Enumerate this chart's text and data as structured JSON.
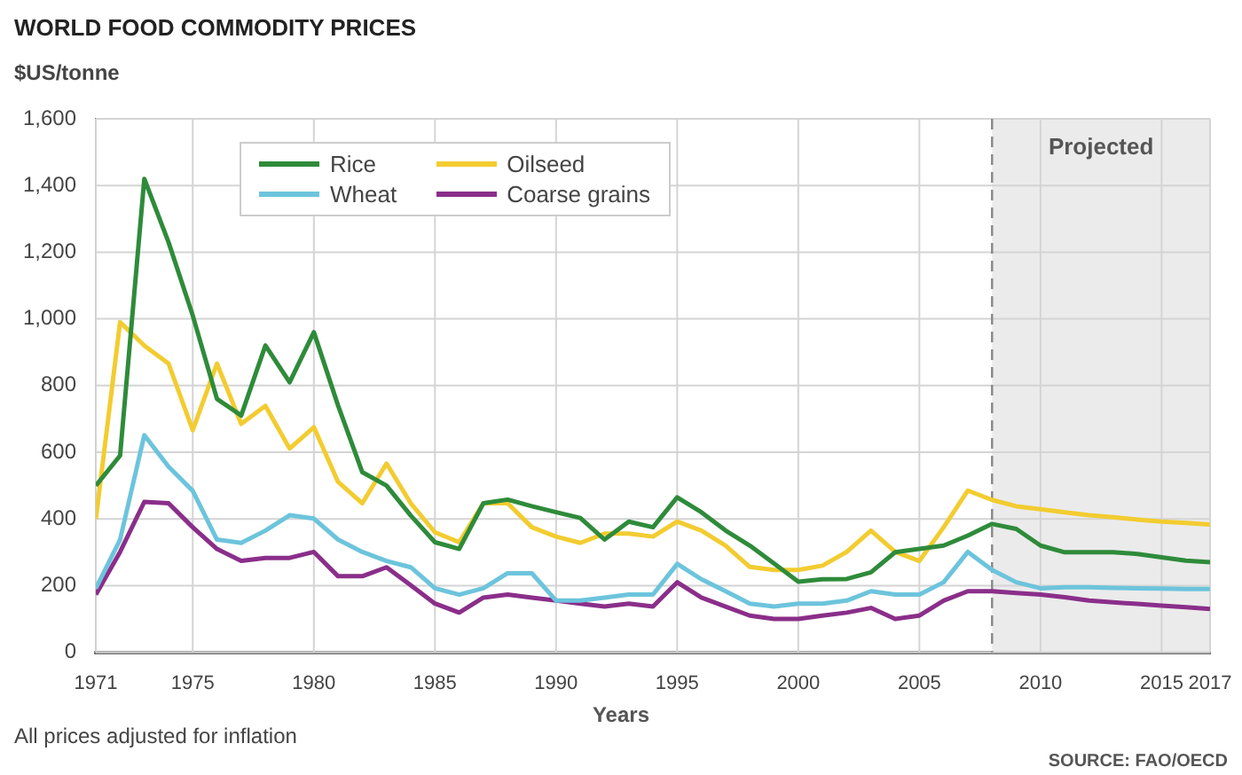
{
  "chart_data": {
    "type": "line",
    "title": "WORLD FOOD COMMODITY PRICES",
    "ylabel": "$US/tonne",
    "xlabel": "Years",
    "annotations": [
      "All prices adjusted for inflation",
      "SOURCE: FAO/OECD"
    ],
    "x": [
      1971,
      1972,
      1973,
      1974,
      1975,
      1976,
      1977,
      1978,
      1979,
      1980,
      1981,
      1982,
      1983,
      1984,
      1985,
      1986,
      1987,
      1988,
      1989,
      1990,
      1991,
      1992,
      1993,
      1994,
      1995,
      1996,
      1997,
      1998,
      1999,
      2000,
      2001,
      2002,
      2003,
      2004,
      2005,
      2006,
      2007,
      2008,
      2009,
      2010,
      2011,
      2012,
      2013,
      2014,
      2015,
      2016,
      2017
    ],
    "series": [
      {
        "name": "Rice",
        "color": "#2e8b3a",
        "values": [
          500,
          590,
          1420,
          1230,
          1010,
          760,
          710,
          920,
          810,
          960,
          740,
          540,
          500,
          410,
          330,
          310,
          447,
          458,
          438,
          420,
          403,
          338,
          392,
          375,
          465,
          420,
          365,
          320,
          266,
          212,
          219,
          220,
          240,
          300,
          310,
          320,
          350,
          385,
          370,
          320,
          300,
          300,
          300,
          295,
          285,
          275,
          270
        ]
      },
      {
        "name": "Oilseed",
        "color": "#f2cc30",
        "values": [
          400,
          990,
          920,
          866,
          666,
          866,
          685,
          739,
          611,
          675,
          511,
          447,
          566,
          447,
          360,
          330,
          447,
          447,
          375,
          347,
          328,
          356,
          356,
          347,
          392,
          365,
          320,
          256,
          247,
          247,
          260,
          301,
          365,
          301,
          274,
          375,
          485,
          457,
          438,
          429,
          420,
          411,
          405,
          398,
          392,
          388,
          383
        ]
      },
      {
        "name": "Wheat",
        "color": "#6cc4dc",
        "values": [
          192,
          338,
          651,
          557,
          484,
          338,
          328,
          365,
          411,
          401,
          338,
          301,
          274,
          255,
          192,
          173,
          192,
          237,
          237,
          155,
          155,
          164,
          173,
          173,
          265,
          219,
          183,
          146,
          137,
          146,
          146,
          155,
          183,
          173,
          173,
          210,
          301,
          247,
          210,
          192,
          195,
          195,
          193,
          192,
          191,
          190,
          190
        ]
      },
      {
        "name": "Coarse grains",
        "color": "#8a2e8a",
        "values": [
          173,
          301,
          451,
          447,
          375,
          310,
          274,
          283,
          283,
          301,
          228,
          228,
          255,
          201,
          146,
          119,
          164,
          173,
          164,
          155,
          146,
          137,
          146,
          137,
          210,
          164,
          137,
          110,
          100,
          100,
          110,
          119,
          133,
          100,
          110,
          155,
          183,
          183,
          178,
          173,
          165,
          155,
          150,
          145,
          140,
          135,
          130
        ]
      }
    ],
    "xlim": [
      1971,
      2017
    ],
    "xticks": [
      1971,
      1975,
      1980,
      1985,
      1990,
      1995,
      2000,
      2005,
      2010,
      2015,
      2017
    ],
    "ylim": [
      0,
      1600
    ],
    "yticks": [
      0,
      200,
      400,
      600,
      800,
      {
        "value": 1000,
        "label": "1,000"
      },
      {
        "value": 1200,
        "label": "1,200"
      },
      {
        "value": 1400,
        "label": "1,400"
      },
      {
        "value": 1600,
        "label": "1,600"
      }
    ],
    "bands": [
      {
        "axis": "x",
        "from": 2008,
        "to": 2017,
        "label": "Projected",
        "color": "#ebebeb"
      }
    ],
    "ref_lines": [
      {
        "axis": "x",
        "value": 2008,
        "color": "#888888",
        "line_style": "dashed"
      }
    ],
    "grid": true,
    "legend": "top left",
    "marker": "none",
    "line_style": "solid"
  }
}
